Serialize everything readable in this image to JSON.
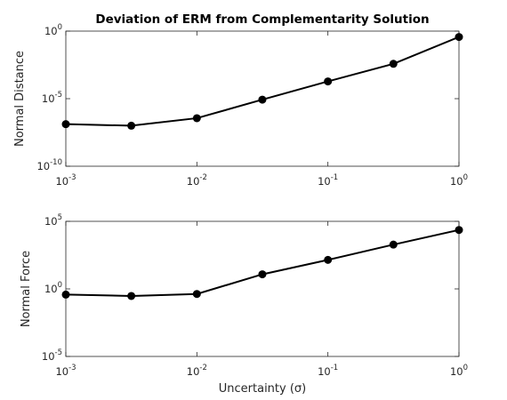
{
  "chart_data": [
    {
      "type": "line",
      "title": "Deviation of ERM from Complementarity Solution",
      "xlabel": "",
      "ylabel": "Normal Distance",
      "x_scale": "log",
      "y_scale": "log",
      "xlim": [
        0.001,
        1
      ],
      "ylim": [
        1e-10,
        1
      ],
      "x_ticks": [
        {
          "base": "10",
          "exp": "-3"
        },
        {
          "base": "10",
          "exp": "-2"
        },
        {
          "base": "10",
          "exp": "-1"
        },
        {
          "base": "10",
          "exp": "0"
        }
      ],
      "y_ticks": [
        {
          "base": "10",
          "exp": "-10"
        },
        {
          "base": "10",
          "exp": "-5"
        },
        {
          "base": "10",
          "exp": "0"
        }
      ],
      "grid": false,
      "x": [
        0.001,
        0.00316,
        0.01,
        0.0316,
        0.1,
        0.316,
        1
      ],
      "series": [
        {
          "values": [
            1.3e-07,
            1e-07,
            3.6e-07,
            8.5e-06,
            0.00019,
            0.0038,
            0.37
          ],
          "color": "#000000",
          "marker": "circle"
        }
      ]
    },
    {
      "type": "line",
      "title": "",
      "xlabel": "Uncertainty (σ)",
      "ylabel": "Normal Force",
      "x_scale": "log",
      "y_scale": "log",
      "xlim": [
        0.001,
        1
      ],
      "ylim": [
        1e-05,
        100000
      ],
      "x_ticks": [
        {
          "base": "10",
          "exp": "-3"
        },
        {
          "base": "10",
          "exp": "-2"
        },
        {
          "base": "10",
          "exp": "-1"
        },
        {
          "base": "10",
          "exp": "0"
        }
      ],
      "y_ticks": [
        {
          "base": "10",
          "exp": "-5"
        },
        {
          "base": "10",
          "exp": "0"
        },
        {
          "base": "10",
          "exp": "5"
        }
      ],
      "grid": false,
      "x": [
        0.001,
        0.00316,
        0.01,
        0.0316,
        0.1,
        0.316,
        1
      ],
      "series": [
        {
          "values": [
            0.38,
            0.3,
            0.42,
            12,
            140,
            1900,
            23000
          ],
          "color": "#000000",
          "marker": "circle"
        }
      ]
    }
  ]
}
